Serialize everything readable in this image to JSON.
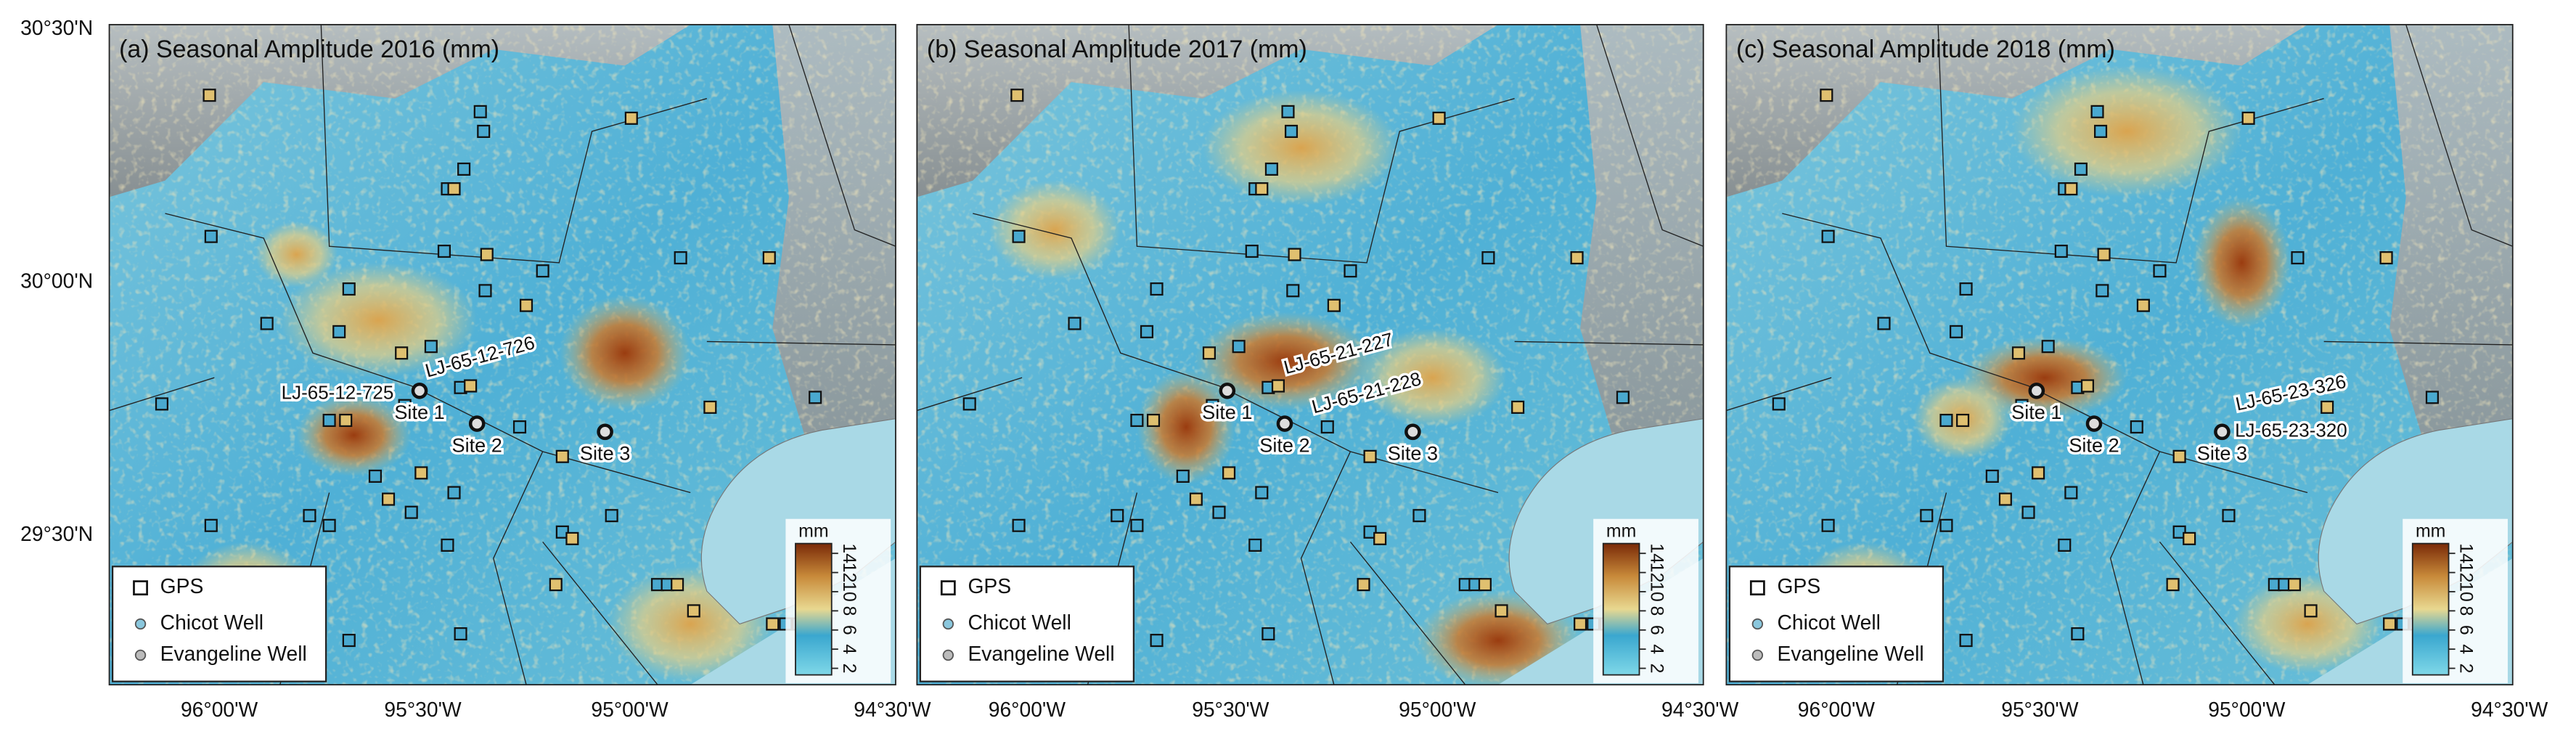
{
  "panels": [
    {
      "title": "(a) Seasonal Amplitude 2016 (mm)",
      "sites": [
        "Site 1",
        "Site 2",
        "Site 3"
      ],
      "wells": [
        "LJ-65-12-725",
        "LJ-65-12-726"
      ]
    },
    {
      "title": "(b) Seasonal Amplitude 2017 (mm)",
      "sites": [
        "Site 1",
        "Site 2",
        "Site 3"
      ],
      "wells": [
        "LJ-65-21-227",
        "LJ-65-21-228"
      ]
    },
    {
      "title": "(c) Seasonal Amplitude 2018 (mm)",
      "sites": [
        "Site 1",
        "Site 2",
        "Site 3"
      ],
      "wells": [
        "LJ-65-23-326",
        "LJ-65-23-320"
      ]
    }
  ],
  "lat_labels": [
    "30°30'N",
    "30°00'N",
    "29°30'N"
  ],
  "lon_labels": [
    "96°00'W",
    "95°30'W",
    "95°00'W",
    "94°30'W"
  ],
  "legend": [
    "GPS",
    "Chicot Well",
    "Evangeline Well"
  ],
  "colorbar": {
    "unit": "mm",
    "ticks": [
      2,
      4,
      6,
      8,
      10,
      12,
      14
    ]
  }
}
